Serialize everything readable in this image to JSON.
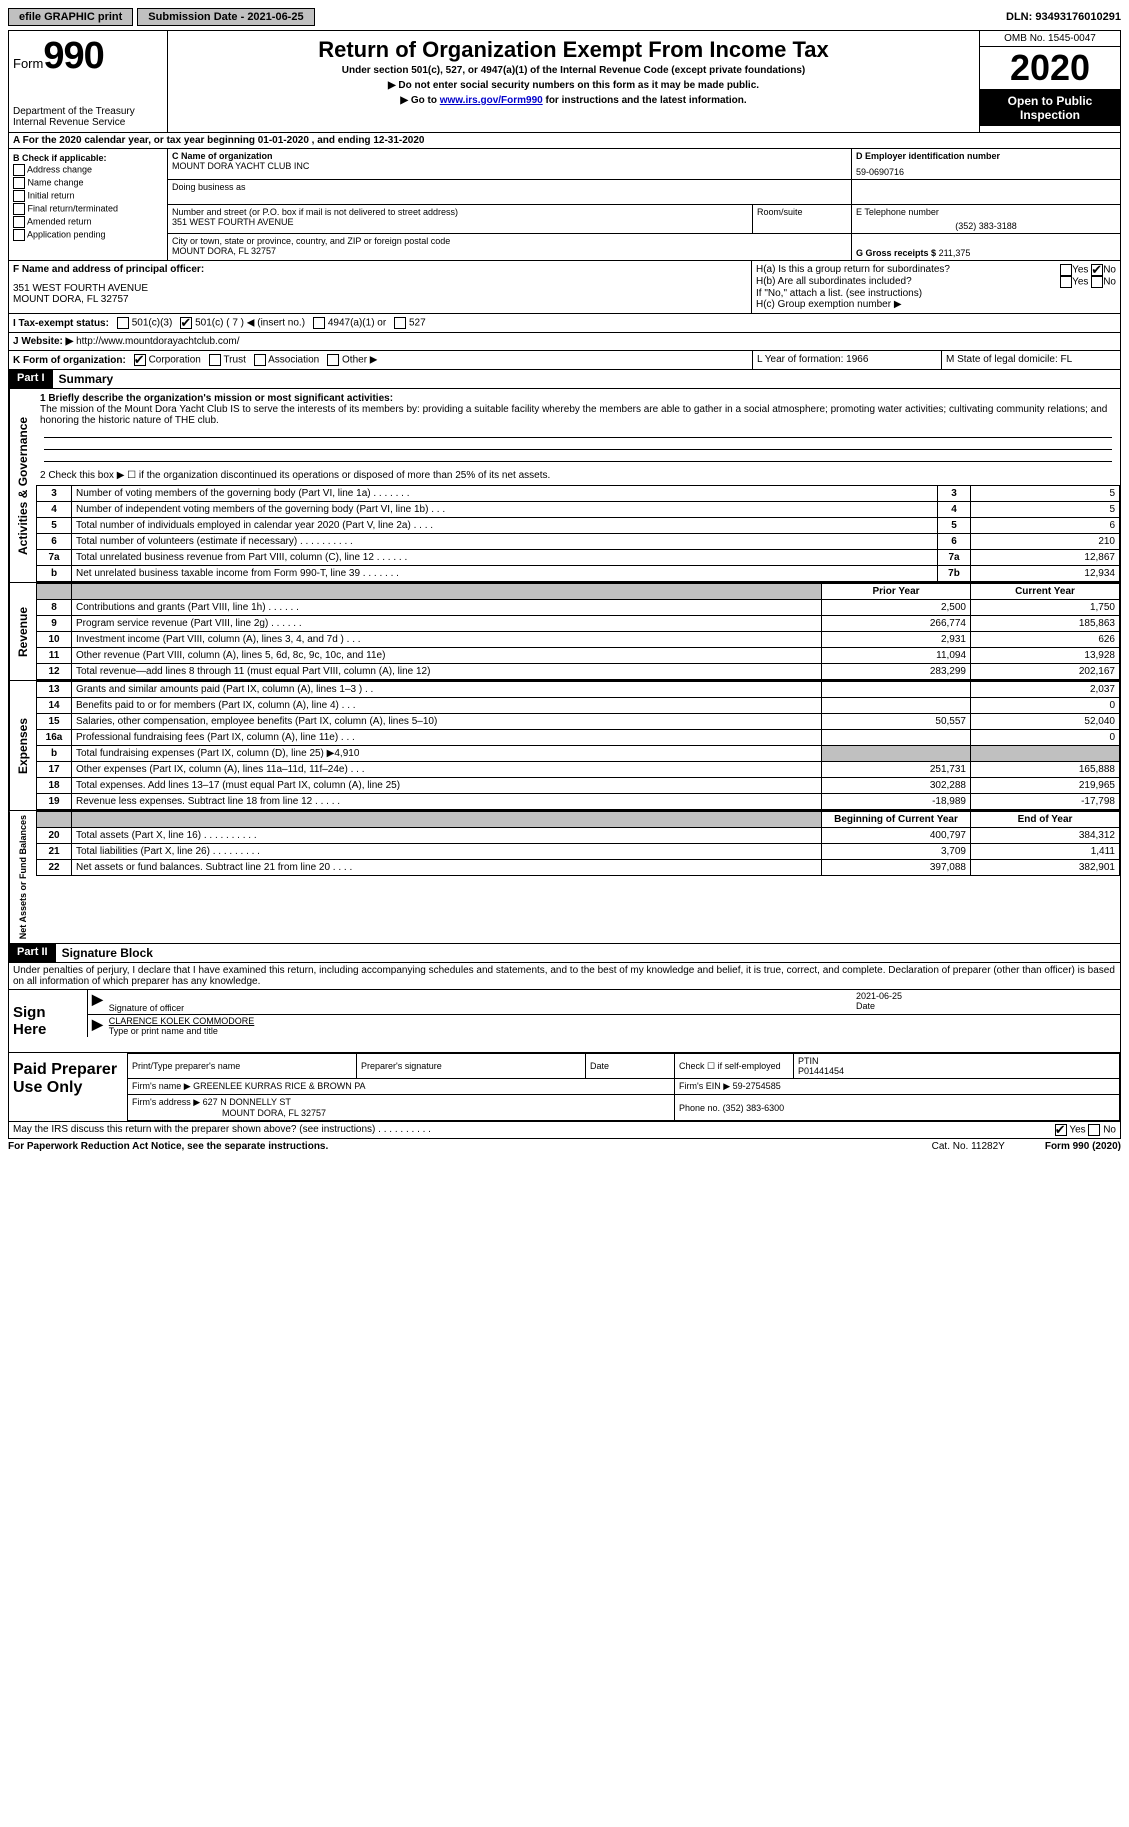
{
  "topbar": {
    "efile": "efile GRAPHIC print",
    "submission_label": "Submission Date - 2021-06-25",
    "dln": "DLN: 93493176010291"
  },
  "header": {
    "form_word": "Form",
    "form_num": "990",
    "dept1": "Department of the Treasury",
    "dept2": "Internal Revenue Service",
    "title": "Return of Organization Exempt From Income Tax",
    "sub1": "Under section 501(c), 527, or 4947(a)(1) of the Internal Revenue Code (except private foundations)",
    "sub2": "▶ Do not enter social security numbers on this form as it may be made public.",
    "sub3a": "▶ Go to ",
    "sub3_link": "www.irs.gov/Form990",
    "sub3b": " for instructions and the latest information.",
    "omb": "OMB No. 1545-0047",
    "year": "2020",
    "open": "Open to Public Inspection"
  },
  "rowA": "A For the 2020 calendar year, or tax year beginning 01-01-2020    , and ending 12-31-2020",
  "boxB": {
    "title": "B Check if applicable:",
    "items": [
      "Address change",
      "Name change",
      "Initial return",
      "Final return/terminated",
      "Amended return",
      "Application pending"
    ]
  },
  "boxC": {
    "name_label": "C Name of organization",
    "name": "MOUNT DORA YACHT CLUB INC",
    "dba_label": "Doing business as",
    "addr_label": "Number and street (or P.O. box if mail is not delivered to street address)",
    "room_label": "Room/suite",
    "addr": "351 WEST FOURTH AVENUE",
    "city_label": "City or town, state or province, country, and ZIP or foreign postal code",
    "city": "MOUNT DORA, FL  32757"
  },
  "boxD": {
    "label": "D Employer identification number",
    "value": "59-0690716"
  },
  "boxE": {
    "label": "E Telephone number",
    "value": "(352) 383-3188"
  },
  "boxG": {
    "label": "G Gross receipts $",
    "value": "211,375"
  },
  "boxF": {
    "label": "F  Name and address of principal officer:",
    "line1": "351 WEST FOURTH AVENUE",
    "line2": "MOUNT DORA, FL  32757"
  },
  "boxH": {
    "a": "H(a)  Is this a group return for subordinates?",
    "b": "H(b)  Are all subordinates included?",
    "b2": "If \"No,\" attach a list. (see instructions)",
    "c": "H(c)  Group exemption number ▶",
    "yes": "Yes",
    "no": "No"
  },
  "rowI": {
    "label": "I   Tax-exempt status:",
    "opts": [
      "501(c)(3)",
      "501(c) ( 7 ) ◀ (insert no.)",
      "4947(a)(1) or",
      "527"
    ]
  },
  "rowJ": {
    "label": "J   Website: ▶",
    "value": "http://www.mountdorayachtclub.com/"
  },
  "rowK": {
    "label": "K Form of organization:",
    "opts": [
      "Corporation",
      "Trust",
      "Association",
      "Other ▶"
    ],
    "L": "L Year of formation: 1966",
    "M": "M State of legal domicile: FL"
  },
  "part1": {
    "header": "Part I",
    "title": "Summary",
    "q1_label": "1  Briefly describe the organization's mission or most significant activities:",
    "q1_text": "The mission of the Mount Dora Yacht Club IS to serve the interests of its members by: providing a suitable facility whereby the members are able to gather in a social atmosphere; promoting water activities; cultivating community relations; and honoring the historic nature of THE club.",
    "q2": "2   Check this box ▶ ☐  if the organization discontinued its operations or disposed of more than 25% of its net assets.",
    "vtab_ag": "Activities & Governance",
    "vtab_rev": "Revenue",
    "vtab_exp": "Expenses",
    "vtab_net": "Net Assets or Fund Balances",
    "lines_gov": [
      {
        "n": "3",
        "t": "Number of voting members of the governing body (Part VI, line 1a)   .    .    .    .    .    .    .",
        "b": "3",
        "v": "5"
      },
      {
        "n": "4",
        "t": "Number of independent voting members of the governing body (Part VI, line 1b)   .    .    .",
        "b": "4",
        "v": "5"
      },
      {
        "n": "5",
        "t": "Total number of individuals employed in calendar year 2020 (Part V, line 2a)   .    .    .    .",
        "b": "5",
        "v": "6"
      },
      {
        "n": "6",
        "t": "Total number of volunteers (estimate if necessary)   .    .    .    .    .    .    .    .    .    .",
        "b": "6",
        "v": "210"
      },
      {
        "n": "7a",
        "t": "Total unrelated business revenue from Part VIII, column (C), line 12   .    .    .    .    .    .",
        "b": "7a",
        "v": "12,867"
      },
      {
        "n": "b",
        "t": "Net unrelated business taxable income from Form 990-T, line 39   .    .    .    .    .    .    .",
        "b": "7b",
        "v": "12,934"
      }
    ],
    "col_prior": "Prior Year",
    "col_curr": "Current Year",
    "col_begin": "Beginning of Current Year",
    "col_end": "End of Year",
    "lines_rev": [
      {
        "n": "8",
        "t": "Contributions and grants (Part VIII, line 1h)   .    .    .    .    .    .",
        "p": "2,500",
        "c": "1,750"
      },
      {
        "n": "9",
        "t": "Program service revenue (Part VIII, line 2g)   .    .    .    .    .    .",
        "p": "266,774",
        "c": "185,863"
      },
      {
        "n": "10",
        "t": "Investment income (Part VIII, column (A), lines 3, 4, and 7d )   .    .    .",
        "p": "2,931",
        "c": "626"
      },
      {
        "n": "11",
        "t": "Other revenue (Part VIII, column (A), lines 5, 6d, 8c, 9c, 10c, and 11e)",
        "p": "11,094",
        "c": "13,928"
      },
      {
        "n": "12",
        "t": "Total revenue—add lines 8 through 11 (must equal Part VIII, column (A), line 12)",
        "p": "283,299",
        "c": "202,167"
      }
    ],
    "lines_exp": [
      {
        "n": "13",
        "t": "Grants and similar amounts paid (Part IX, column (A), lines 1–3 )  .    .",
        "p": "",
        "c": "2,037"
      },
      {
        "n": "14",
        "t": "Benefits paid to or for members (Part IX, column (A), line 4)  .    .    .",
        "p": "",
        "c": "0"
      },
      {
        "n": "15",
        "t": "Salaries, other compensation, employee benefits (Part IX, column (A), lines 5–10)",
        "p": "50,557",
        "c": "52,040"
      },
      {
        "n": "16a",
        "t": "Professional fundraising fees (Part IX, column (A), line 11e)  .    .    .",
        "p": "",
        "c": "0"
      },
      {
        "n": "b",
        "t": "Total fundraising expenses (Part IX, column (D), line 25) ▶4,910",
        "p": "GRAY",
        "c": "GRAY"
      },
      {
        "n": "17",
        "t": "Other expenses (Part IX, column (A), lines 11a–11d, 11f–24e)  .    .    .",
        "p": "251,731",
        "c": "165,888"
      },
      {
        "n": "18",
        "t": "Total expenses. Add lines 13–17 (must equal Part IX, column (A), line 25)",
        "p": "302,288",
        "c": "219,965"
      },
      {
        "n": "19",
        "t": "Revenue less expenses. Subtract line 18 from line 12  .    .    .    .    .",
        "p": "-18,989",
        "c": "-17,798"
      }
    ],
    "lines_net": [
      {
        "n": "20",
        "t": "Total assets (Part X, line 16)  .    .    .    .    .    .    .    .    .    .",
        "p": "400,797",
        "c": "384,312"
      },
      {
        "n": "21",
        "t": "Total liabilities (Part X, line 26)  .    .    .    .    .    .    .    .    .",
        "p": "3,709",
        "c": "1,411"
      },
      {
        "n": "22",
        "t": "Net assets or fund balances. Subtract line 21 from line 20  .    .    .    .",
        "p": "397,088",
        "c": "382,901"
      }
    ]
  },
  "part2": {
    "header": "Part II",
    "title": "Signature Block",
    "perjury": "Under penalties of perjury, I declare that I have examined this return, including accompanying schedules and statements, and to the best of my knowledge and belief, it is true, correct, and complete. Declaration of preparer (other than officer) is based on all information of which preparer has any knowledge.",
    "sign_here": "Sign Here",
    "sig_officer": "Signature of officer",
    "date": "Date",
    "date_val": "2021-06-25",
    "name_title": "CLARENCE KOLEK  COMMODORE",
    "type_name": "Type or print name and title",
    "paid": "Paid Preparer Use Only",
    "h_print": "Print/Type preparer's name",
    "h_sig": "Preparer's signature",
    "h_date": "Date",
    "h_check": "Check ☐ if self-employed",
    "h_ptin": "PTIN",
    "ptin": "P01441454",
    "firm_name_l": "Firm's name     ▶",
    "firm_name": "GREENLEE KURRAS RICE & BROWN PA",
    "firm_ein_l": "Firm's EIN ▶",
    "firm_ein": "59-2754585",
    "firm_addr_l": "Firm's address ▶",
    "firm_addr1": "627 N DONNELLY ST",
    "firm_addr2": "MOUNT DORA, FL  32757",
    "phone_l": "Phone no.",
    "phone": "(352) 383-6300",
    "may_irs": "May the IRS discuss this return with the preparer shown above? (see instructions)   .    .    .    .    .    .    .    .    .    .",
    "yes": "Yes",
    "no": "No"
  },
  "footer": {
    "left": "For Paperwork Reduction Act Notice, see the separate instructions.",
    "mid": "Cat. No. 11282Y",
    "right": "Form 990 (2020)"
  }
}
